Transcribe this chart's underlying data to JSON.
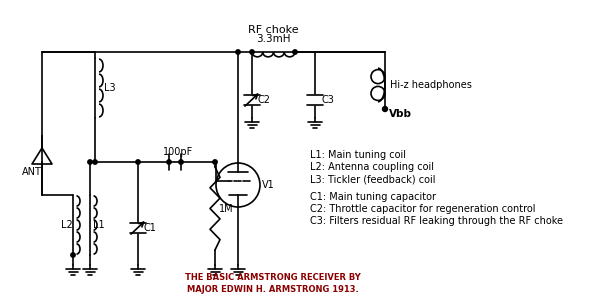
{
  "bg_color": "#ffffff",
  "line_color": "#000000",
  "line_width": 1.2,
  "rf_choke_label": "RF choke",
  "rf_choke_value": "3.3mH",
  "label_L1": "L1: Main tuning coil",
  "label_L2": "L2: Antenna coupling coil",
  "label_L3": "L3: Tickler (feedback) coil",
  "label_C1": "C1: Main tuning capacitor",
  "label_C2": "C2: Throttle capacitor for regeneration control",
  "label_C3": "C3: Filters residual RF leaking through the RF choke",
  "footer1": "THE BASIC ARMSTRONG RECEIVER BY",
  "footer2": "MAJOR EDWIN H. ARMSTRONG 1913.",
  "ant_label": "ANT",
  "v1_label": "V1",
  "vbb_label": "Vbb",
  "hi_z_label": "Hi-z headphones",
  "cap_100pF": "100pF",
  "res_1M": "1M",
  "comp_L1": "L1",
  "comp_L2": "L2",
  "comp_L3": "L3",
  "comp_C1": "C1",
  "comp_C2": "C2",
  "comp_C3": "C3"
}
